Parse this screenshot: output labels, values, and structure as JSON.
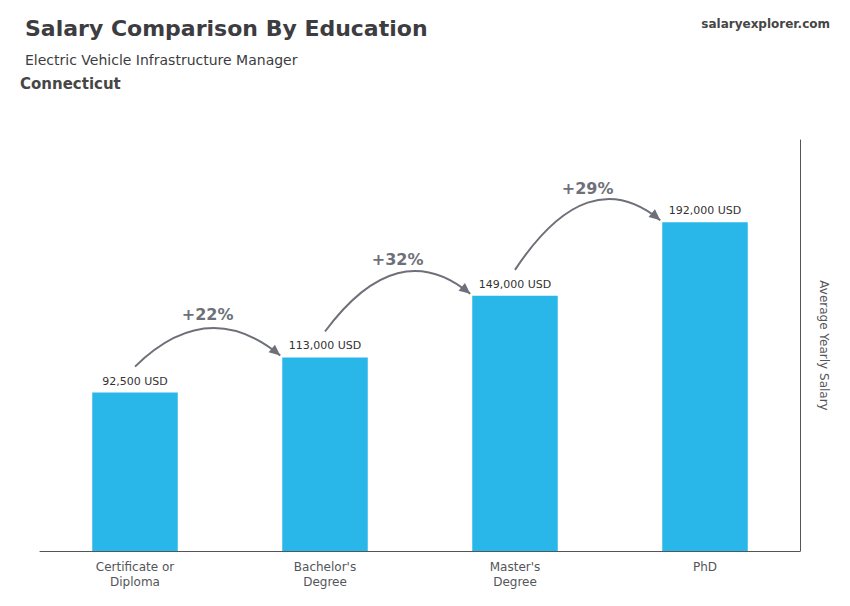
{
  "chart_data": {
    "type": "bar",
    "title": "Salary Comparison By Education",
    "subtitle": "Electric Vehicle Infrastructure Manager",
    "ylabel": "Average Yearly Salary",
    "categories": [
      "Certificate or\nDiploma",
      "Bachelor's\nDegree",
      "Master's\nDegree",
      "PhD"
    ],
    "values": [
      92500,
      113000,
      149000,
      192000
    ],
    "value_labels": [
      "92,500 USD",
      "113,000 USD",
      "149,000 USD",
      "192,000 USD"
    ],
    "data_labels": true,
    "color": "#29b6e8",
    "ylim": [
      0,
      240000
    ],
    "yticks": [],
    "grid": false,
    "tick_labels": "x",
    "annotations": [
      {
        "text": "Connecticut"
      },
      {
        "text": "salaryexplorer.com"
      },
      {
        "text": "+22%",
        "between": [
          "Certificate or\nDiploma",
          "Bachelor's\nDegree"
        ]
      },
      {
        "text": "+32%",
        "between": [
          "Bachelor's\nDegree",
          "Master's\nDegree"
        ]
      },
      {
        "text": "+29%",
        "between": [
          "Master's\nDegree",
          "PhD"
        ]
      }
    ]
  }
}
